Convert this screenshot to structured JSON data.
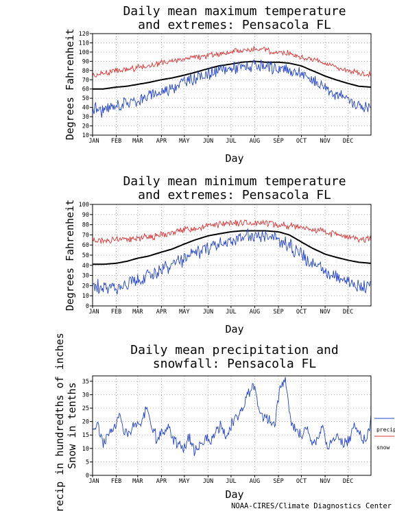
{
  "credit": "NOAA-CIRES/Climate Diagnostics Center",
  "colors": {
    "mean": "#000000",
    "max_extreme": "#e03030",
    "min_extreme": "#2040d0",
    "precip": "#2040d0",
    "snow": "#e03030",
    "grid": "#9a9a9a"
  },
  "chart_data": [
    {
      "type": "line",
      "title_lines": [
        "Daily mean maximum temperature",
        "and extremes: Pensacola FL"
      ],
      "xlabel": "Day",
      "ylabel": "Degrees Fahrenheit",
      "categories": [
        "JAN",
        "FEB",
        "MAR",
        "APR",
        "MAY",
        "JUN",
        "JUL",
        "AUG",
        "SEP",
        "OCT",
        "NOV",
        "DEC"
      ],
      "yticks": [
        10,
        20,
        30,
        40,
        50,
        60,
        70,
        80,
        90,
        100,
        110,
        120
      ],
      "ylim": [
        10,
        120
      ],
      "xlim": [
        1,
        365
      ],
      "grid": "dotted",
      "series": [
        {
          "role": "mean",
          "x": [
            1,
            15,
            32,
            46,
            60,
            74,
            91,
            105,
            121,
            135,
            152,
            166,
            182,
            196,
            213,
            227,
            244,
            258,
            274,
            288,
            305,
            319,
            335,
            349,
            365
          ],
          "values": [
            60,
            60,
            62,
            63,
            65,
            67,
            70,
            72,
            75,
            78,
            82,
            85,
            87,
            89,
            90,
            89,
            89,
            88,
            85,
            80,
            74,
            70,
            66,
            63,
            62
          ]
        },
        {
          "role": "max_extreme",
          "x": [
            1,
            15,
            32,
            46,
            60,
            74,
            91,
            105,
            121,
            135,
            152,
            166,
            182,
            196,
            213,
            227,
            244,
            258,
            274,
            288,
            305,
            319,
            335,
            349,
            365
          ],
          "values": [
            75,
            77,
            80,
            81,
            83,
            85,
            88,
            90,
            93,
            94,
            96,
            98,
            100,
            102,
            103,
            102,
            100,
            98,
            95,
            92,
            87,
            84,
            80,
            77,
            76
          ]
        },
        {
          "role": "min_extreme",
          "x": [
            1,
            15,
            32,
            46,
            60,
            74,
            91,
            105,
            121,
            135,
            152,
            166,
            182,
            196,
            213,
            227,
            244,
            258,
            274,
            288,
            305,
            319,
            335,
            349,
            365
          ],
          "values": [
            40,
            36,
            42,
            45,
            48,
            52,
            57,
            62,
            68,
            72,
            76,
            79,
            83,
            84,
            84,
            83,
            82,
            80,
            76,
            70,
            62,
            55,
            48,
            42,
            40
          ]
        }
      ]
    },
    {
      "type": "line",
      "title_lines": [
        "Daily mean minimum temperature",
        "and extremes: Pensacola FL"
      ],
      "xlabel": "Day",
      "ylabel": "Degrees Fahrenheit",
      "categories": [
        "JAN",
        "FEB",
        "MAR",
        "APR",
        "MAY",
        "JUN",
        "JUL",
        "AUG",
        "SEP",
        "OCT",
        "NOV",
        "DEC"
      ],
      "yticks": [
        0,
        10,
        20,
        30,
        40,
        50,
        60,
        70,
        80,
        90,
        100
      ],
      "ylim": [
        0,
        100
      ],
      "xlim": [
        1,
        365
      ],
      "grid": "dotted",
      "series": [
        {
          "role": "mean",
          "x": [
            1,
            15,
            32,
            46,
            60,
            74,
            91,
            105,
            121,
            135,
            152,
            166,
            182,
            196,
            213,
            227,
            244,
            258,
            274,
            288,
            305,
            319,
            335,
            349,
            365
          ],
          "values": [
            41,
            41,
            42,
            44,
            47,
            49,
            53,
            56,
            61,
            65,
            69,
            71,
            73,
            74,
            74,
            74,
            73,
            70,
            63,
            57,
            51,
            48,
            45,
            43,
            42
          ]
        },
        {
          "role": "max_extreme",
          "x": [
            1,
            15,
            32,
            46,
            60,
            74,
            91,
            105,
            121,
            135,
            152,
            166,
            182,
            196,
            213,
            227,
            244,
            258,
            274,
            288,
            305,
            319,
            335,
            349,
            365
          ],
          "values": [
            65,
            64,
            66,
            66,
            67,
            68,
            70,
            72,
            75,
            77,
            79,
            80,
            81,
            82,
            82,
            82,
            80,
            79,
            77,
            75,
            73,
            70,
            68,
            66,
            65
          ]
        },
        {
          "role": "min_extreme",
          "x": [
            1,
            15,
            32,
            46,
            60,
            74,
            91,
            105,
            121,
            135,
            152,
            166,
            182,
            196,
            213,
            227,
            244,
            258,
            274,
            288,
            305,
            319,
            335,
            349,
            365
          ],
          "values": [
            20,
            17,
            19,
            22,
            26,
            30,
            35,
            40,
            46,
            52,
            57,
            61,
            65,
            68,
            68,
            68,
            66,
            60,
            50,
            42,
            34,
            30,
            25,
            20,
            20
          ]
        }
      ]
    },
    {
      "type": "line",
      "title_lines": [
        "Daily mean precipitation and",
        "snowfall: Pensacola FL"
      ],
      "xlabel": "Day",
      "ylabel_lines": [
        "Precip in hundredths of inches",
        "Snow in tenths"
      ],
      "categories": [
        "JAN",
        "FEB",
        "MAR",
        "APR",
        "MAY",
        "JUN",
        "JUL",
        "AUG",
        "SEP",
        "OCT",
        "NOV",
        "DEC"
      ],
      "yticks": [
        0,
        5,
        10,
        15,
        20,
        25,
        30,
        35
      ],
      "ylim": [
        0,
        37
      ],
      "xlim": [
        1,
        365
      ],
      "grid": "dotted",
      "legend": {
        "placement": "right",
        "entries": [
          "precip",
          "snow"
        ]
      },
      "series": [
        {
          "name": "precip",
          "role": "precip",
          "x": [
            1,
            8,
            15,
            22,
            29,
            36,
            43,
            50,
            57,
            64,
            71,
            78,
            85,
            92,
            99,
            106,
            113,
            120,
            127,
            134,
            141,
            148,
            155,
            162,
            169,
            176,
            183,
            190,
            197,
            204,
            211,
            218,
            225,
            232,
            239,
            246,
            253,
            260,
            267,
            274,
            281,
            288,
            295,
            302,
            309,
            316,
            323,
            330,
            337,
            344,
            351,
            358,
            365
          ],
          "values": [
            17,
            19,
            12,
            15,
            18,
            22,
            17,
            15,
            20,
            18,
            25,
            19,
            13,
            15,
            18,
            14,
            12,
            10,
            14,
            9,
            12,
            14,
            12,
            16,
            18,
            14,
            19,
            22,
            24,
            30,
            35,
            25,
            22,
            20,
            19,
            33,
            36,
            20,
            16,
            15,
            18,
            12,
            14,
            18,
            10,
            13,
            15,
            11,
            14,
            19,
            16,
            12,
            21
          ]
        },
        {
          "name": "snow",
          "role": "snow",
          "x": [
            1,
            365
          ],
          "values": [
            0,
            0
          ]
        }
      ]
    }
  ]
}
